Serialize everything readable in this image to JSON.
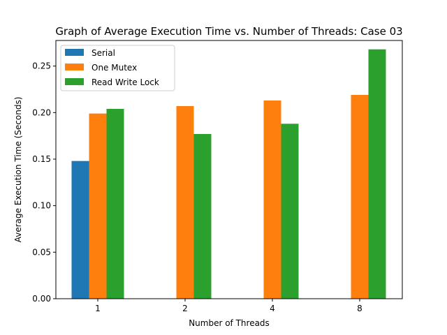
{
  "chart_data": {
    "type": "bar",
    "title": "Graph of Average Execution Time vs. Number of Threads:  Case 03",
    "xlabel": "Number of Threads",
    "ylabel": "Average Execution Time (Seconds)",
    "categories": [
      "1",
      "2",
      "4",
      "8"
    ],
    "ylim": [
      0,
      0.2775
    ],
    "yticks": [
      0.0,
      0.05,
      0.1,
      0.15,
      0.2,
      0.25
    ],
    "ytick_labels": [
      "0.00",
      "0.05",
      "0.10",
      "0.15",
      "0.20",
      "0.25"
    ],
    "grid": false,
    "legend_position": "top-left",
    "series": [
      {
        "name": "Serial",
        "color": "#1f77b4",
        "values": [
          0.148,
          null,
          null,
          null
        ]
      },
      {
        "name": "One Mutex",
        "color": "#ff7f0e",
        "values": [
          0.199,
          0.207,
          0.213,
          0.219
        ]
      },
      {
        "name": "Read Write Lock",
        "color": "#2ca02c",
        "values": [
          0.204,
          0.177,
          0.188,
          0.268
        ]
      }
    ]
  }
}
